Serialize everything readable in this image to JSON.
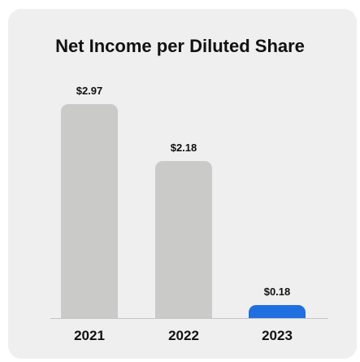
{
  "chart_data": {
    "type": "bar",
    "title": "Net Income per Diluted Share",
    "categories": [
      "2021",
      "2022",
      "2023"
    ],
    "values": [
      2.97,
      2.18,
      0.18
    ],
    "value_labels": [
      "$2.97",
      "$2.18",
      "$0.18"
    ],
    "ylim": [
      0,
      2.97
    ],
    "grid": false,
    "legend": "none",
    "colors": {
      "default_bar": "#cacac8",
      "highlight_bar": "#1f6fe0",
      "highlight_index": 2,
      "card_background": "#efefef",
      "baseline": "#c4c4c4"
    }
  }
}
